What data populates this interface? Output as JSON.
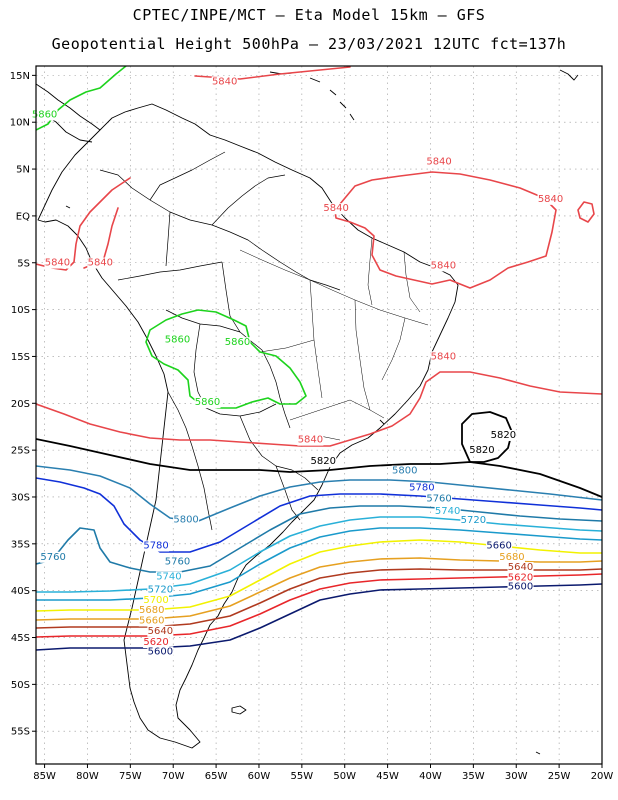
{
  "header": {
    "title_line1": "CPTEC/INPE/MCT —  Eta Model 15km — GFS",
    "title_line2": "Geopotential Height 500hPa — 23/03/2021 12UTC fct=137h"
  },
  "map": {
    "lon_range": [
      -86,
      -20
    ],
    "lat_range": [
      -58.5,
      16
    ],
    "lon_ticks": [
      "85W",
      "80W",
      "75W",
      "70W",
      "65W",
      "60W",
      "55W",
      "50W",
      "45W",
      "40W",
      "35W",
      "30W",
      "25W",
      "20W"
    ],
    "lat_ticks": [
      "15N",
      "10N",
      "5N",
      "EQ",
      "5S",
      "10S",
      "15S",
      "20S",
      "25S",
      "30S",
      "35S",
      "40S",
      "45S",
      "50S",
      "55S"
    ],
    "colors": {
      "c5600": "#0b1a6e",
      "c5620": "#e8262a",
      "c5640": "#b03a1f",
      "c5660": "#e6a020",
      "c5680": "#f2f200",
      "c5720": "#1a9acb",
      "c5740": "#29b0d8",
      "c5760": "#1f7aa8",
      "c5780": "#1030d8",
      "c5800": "#2a7fb0",
      "c5820": "#000000",
      "c5840": "#e8464a",
      "c5860": "#1dd31d",
      "coast": "#000000",
      "grid": "#9a9a9a"
    },
    "contour_labels": [
      {
        "text": "5840",
        "color": "#e8464a",
        "lon": -64,
        "lat": 14
      },
      {
        "text": "5860",
        "color": "#1dd31d",
        "lon": -85,
        "lat": 10.5
      },
      {
        "text": "5840",
        "color": "#e8464a",
        "lon": -39,
        "lat": 5.5
      },
      {
        "text": "5840",
        "color": "#e8464a",
        "lon": -26,
        "lat": 1.5
      },
      {
        "text": "5840",
        "color": "#e8464a",
        "lon": -51,
        "lat": 0.5
      },
      {
        "text": "5840",
        "color": "#e8464a",
        "lon": -83.5,
        "lat": -5.3
      },
      {
        "text": "5840",
        "color": "#e8464a",
        "lon": -78.5,
        "lat": -5.3
      },
      {
        "text": "5840",
        "color": "#e8464a",
        "lon": -38.5,
        "lat": -5.6
      },
      {
        "text": "5860",
        "color": "#1dd31d",
        "lon": -69.5,
        "lat": -13.5
      },
      {
        "text": "5860",
        "color": "#1dd31d",
        "lon": -62.5,
        "lat": -13.8
      },
      {
        "text": "5840",
        "color": "#e8464a",
        "lon": -38.5,
        "lat": -15.3
      },
      {
        "text": "5860",
        "color": "#1dd31d",
        "lon": -66,
        "lat": -20.2
      },
      {
        "text": "5840",
        "color": "#e8464a",
        "lon": -54,
        "lat": -24.2
      },
      {
        "text": "5820",
        "color": "#000000",
        "lon": -52.5,
        "lat": -26.5
      },
      {
        "text": "5820",
        "color": "#000000",
        "lon": -34,
        "lat": -25.3
      },
      {
        "text": "5820",
        "color": "#000000",
        "lon": -31.5,
        "lat": -23.7
      },
      {
        "text": "5800",
        "color": "#2a7fb0",
        "lon": -43,
        "lat": -27.5
      },
      {
        "text": "5780",
        "color": "#1030d8",
        "lon": -41,
        "lat": -29.3
      },
      {
        "text": "5760",
        "color": "#1f7aa8",
        "lon": -39,
        "lat": -30.5
      },
      {
        "text": "5740",
        "color": "#29b0d8",
        "lon": -38,
        "lat": -31.8
      },
      {
        "text": "5720",
        "color": "#1a9acb",
        "lon": -35,
        "lat": -32.8
      },
      {
        "text": "5800",
        "color": "#2a7fb0",
        "lon": -68.5,
        "lat": -32.7
      },
      {
        "text": "5780",
        "color": "#1030d8",
        "lon": -72,
        "lat": -35.5
      },
      {
        "text": "5760",
        "color": "#1f7aa8",
        "lon": -84,
        "lat": -36.7
      },
      {
        "text": "5760",
        "color": "#1f7aa8",
        "lon": -69.5,
        "lat": -37.2
      },
      {
        "text": "5740",
        "color": "#29b0d8",
        "lon": -70.5,
        "lat": -38.8
      },
      {
        "text": "5720",
        "color": "#1a9acb",
        "lon": -71.5,
        "lat": -40.2
      },
      {
        "text": "5700",
        "color": "#f2f200",
        "lon": -72,
        "lat": -41.3
      },
      {
        "text": "5680",
        "color": "#e6a020",
        "lon": -72.5,
        "lat": -42.4
      },
      {
        "text": "5660",
        "color": "#e6a020",
        "lon": -72.5,
        "lat": -43.5
      },
      {
        "text": "5640",
        "color": "#b03a1f",
        "lon": -71.5,
        "lat": -44.6
      },
      {
        "text": "5620",
        "color": "#e8262a",
        "lon": -72,
        "lat": -45.8
      },
      {
        "text": "5600",
        "color": "#0b1a6e",
        "lon": -71.5,
        "lat": -46.8
      },
      {
        "text": "5660",
        "color": "#0b1a6e",
        "lon": -32,
        "lat": -35.5
      },
      {
        "text": "5680",
        "color": "#e6a020",
        "lon": -30.5,
        "lat": -36.7
      },
      {
        "text": "5640",
        "color": "#b03a1f",
        "lon": -29.5,
        "lat": -37.8
      },
      {
        "text": "5620",
        "color": "#e8262a",
        "lon": -29.5,
        "lat": -38.9
      },
      {
        "text": "5600",
        "color": "#0b1a6e",
        "lon": -29.5,
        "lat": -39.9
      }
    ]
  }
}
